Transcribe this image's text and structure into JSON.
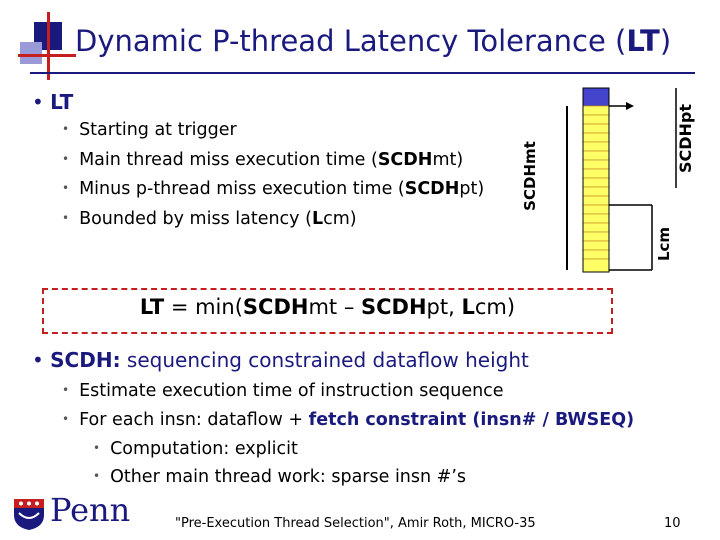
{
  "title": {
    "prefix": "Dynamic P-thread Latency Tolerance (",
    "bold": "LT",
    "suffix": ")"
  },
  "section_lt": {
    "heading": "LT",
    "items": [
      {
        "text": "Starting at trigger"
      },
      {
        "pre": "Main thread miss execution time (",
        "bold": "SCDH",
        "post": "mt)"
      },
      {
        "pre": "Minus p-thread miss execution time (",
        "bold": "SCDH",
        "post": "pt)"
      },
      {
        "pre": "Bounded by miss latency (",
        "bold": "L",
        "post": "cm)"
      }
    ]
  },
  "diagram": {
    "label_mt": {
      "bold": "SCDH",
      "plain": "mt"
    },
    "label_pt": {
      "bold": "SCDH",
      "plain": "pt"
    },
    "label_lcm": {
      "bold": "L",
      "plain": "cm"
    },
    "colors": {
      "fill": "#ffff66",
      "highlight": "#4444cc",
      "line": "#000000"
    }
  },
  "formula": {
    "p1": "LT",
    "p2": " = min(",
    "p3": "SCDH",
    "p4": "mt – ",
    "p5": "SCDH",
    "p6": "pt, ",
    "p7": "L",
    "p8": "cm)"
  },
  "section_scdh": {
    "heading_bold": "SCDH:",
    "heading_rest": " sequencing constrained dataflow height",
    "items": [
      {
        "text": "Estimate execution time of instruction sequence"
      },
      {
        "pre": "For each insn: dataflow + ",
        "fetch": "fetch constraint (insn# / BWSEQ)"
      }
    ],
    "subitems": [
      {
        "text": "Computation: explicit"
      },
      {
        "text": "Other main thread work: sparse insn #’s"
      }
    ]
  },
  "logo": {
    "text": "Penn"
  },
  "footer": {
    "citation": "\"Pre-Execution Thread Selection\", Amir Roth, MICRO-35",
    "page": "10"
  }
}
